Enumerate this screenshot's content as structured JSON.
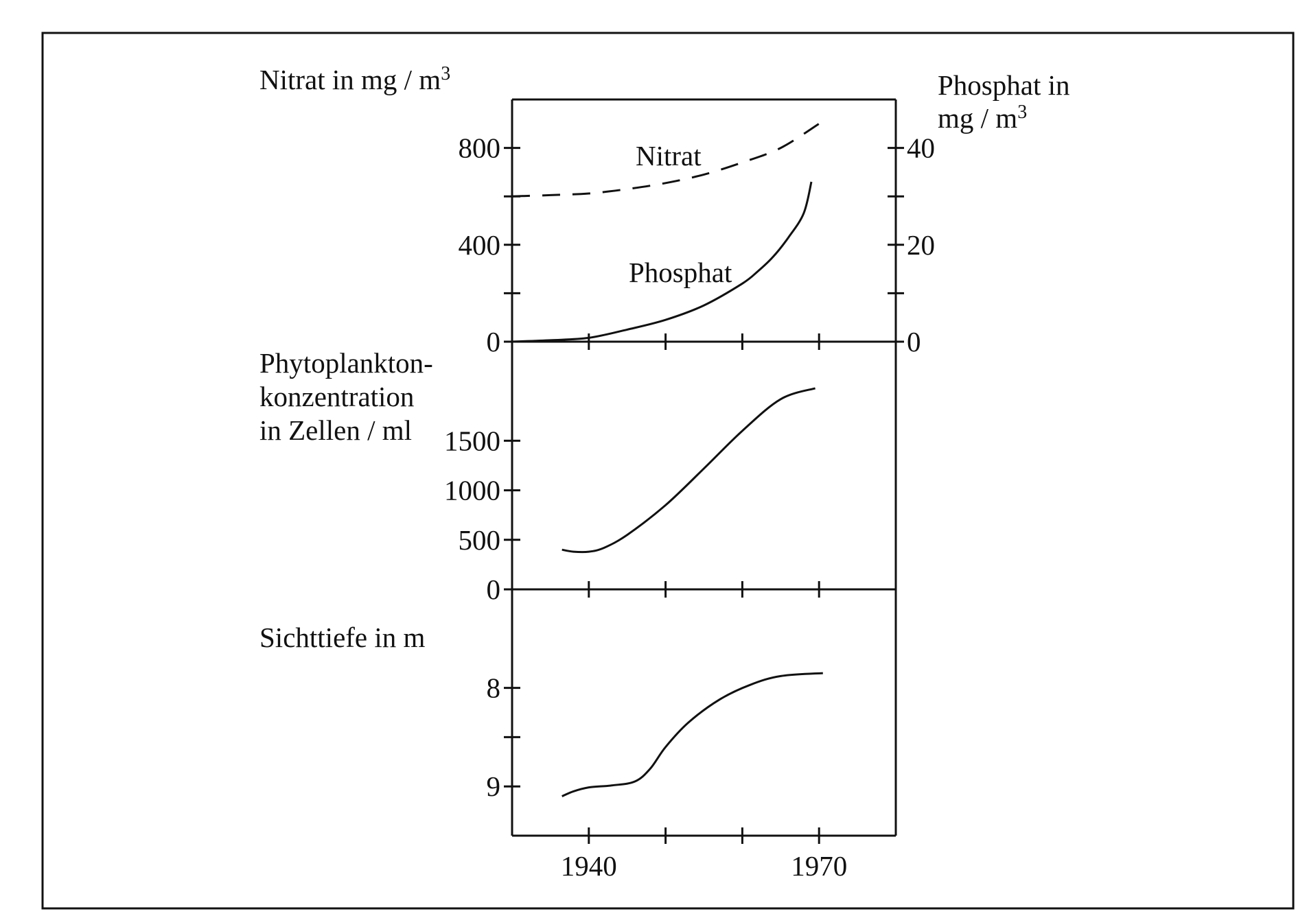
{
  "chart_data": [
    {
      "type": "line",
      "panel": "nutrients",
      "x_range": [
        1930,
        1980
      ],
      "left_axis": {
        "label": "Nitrat in mg / m³",
        "label_main": "Nitrat in mg / m",
        "label_sup": "3",
        "range": [
          0,
          1000
        ],
        "ticks": [
          0,
          200,
          400,
          600,
          800
        ],
        "tick_labels": [
          "0",
          "",
          "400",
          "",
          "800"
        ]
      },
      "right_axis": {
        "label": "Phosphat in mg / m³",
        "label_line1": "Phosphat in",
        "label_line2_main": "mg / m",
        "label_sup": "3",
        "range": [
          0,
          50
        ],
        "ticks": [
          0,
          10,
          20,
          30,
          40
        ],
        "tick_labels": [
          "0",
          "",
          "20",
          "",
          "40"
        ]
      },
      "series": [
        {
          "name": "Nitrat",
          "style": "dashed",
          "axis": "left",
          "x": [
            1930,
            1935,
            1940,
            1945,
            1950,
            1955,
            1960,
            1965,
            1970
          ],
          "values": [
            600,
            605,
            612,
            630,
            655,
            690,
            740,
            800,
            900
          ]
        },
        {
          "name": "Phosphat",
          "style": "solid",
          "axis": "right",
          "x": [
            1930,
            1935,
            1940,
            1945,
            1950,
            1955,
            1960,
            1962,
            1964,
            1966,
            1968,
            1969
          ],
          "values": [
            0,
            0.3,
            0.8,
            2.5,
            4.5,
            7.5,
            12,
            14.5,
            17.5,
            21.5,
            26.5,
            33
          ]
        }
      ]
    },
    {
      "type": "line",
      "panel": "phytoplankton",
      "x_range": [
        1930,
        1980
      ],
      "y_axis": {
        "label_lines": [
          "Phytoplankton-",
          "konzentration",
          "in Zellen / ml"
        ],
        "range": [
          0,
          2500
        ],
        "ticks": [
          0,
          500,
          1000,
          1500
        ],
        "tick_labels": [
          "0",
          "500",
          "1000",
          "1500"
        ]
      },
      "series": [
        {
          "name": "Phytoplankton",
          "x": [
            1936.5,
            1938,
            1940,
            1942,
            1945,
            1950,
            1955,
            1960,
            1965,
            1969.5
          ],
          "values": [
            400,
            380,
            380,
            420,
            550,
            850,
            1220,
            1600,
            1920,
            2030
          ]
        }
      ]
    },
    {
      "type": "line",
      "panel": "visibility",
      "x_range": [
        1930,
        1980
      ],
      "y_axis": {
        "label": "Sichttiefe in m",
        "range": [
          7.0,
          9.5
        ],
        "inverted": true,
        "ticks": [
          8,
          8.5,
          9
        ],
        "tick_labels": [
          "8",
          "",
          "9"
        ]
      },
      "series": [
        {
          "name": "Sichttiefe",
          "x": [
            1936.5,
            1938,
            1940,
            1943,
            1946,
            1948,
            1950,
            1953,
            1957,
            1961,
            1965,
            1970.5
          ],
          "values": [
            9.1,
            9.05,
            9.01,
            8.99,
            8.95,
            8.82,
            8.6,
            8.35,
            8.12,
            7.97,
            7.88,
            7.85
          ]
        }
      ]
    }
  ],
  "x_axis": {
    "ticks": [
      1940,
      1950,
      1960,
      1970
    ],
    "tick_labels": [
      "1940",
      "",
      "",
      "1970"
    ]
  }
}
